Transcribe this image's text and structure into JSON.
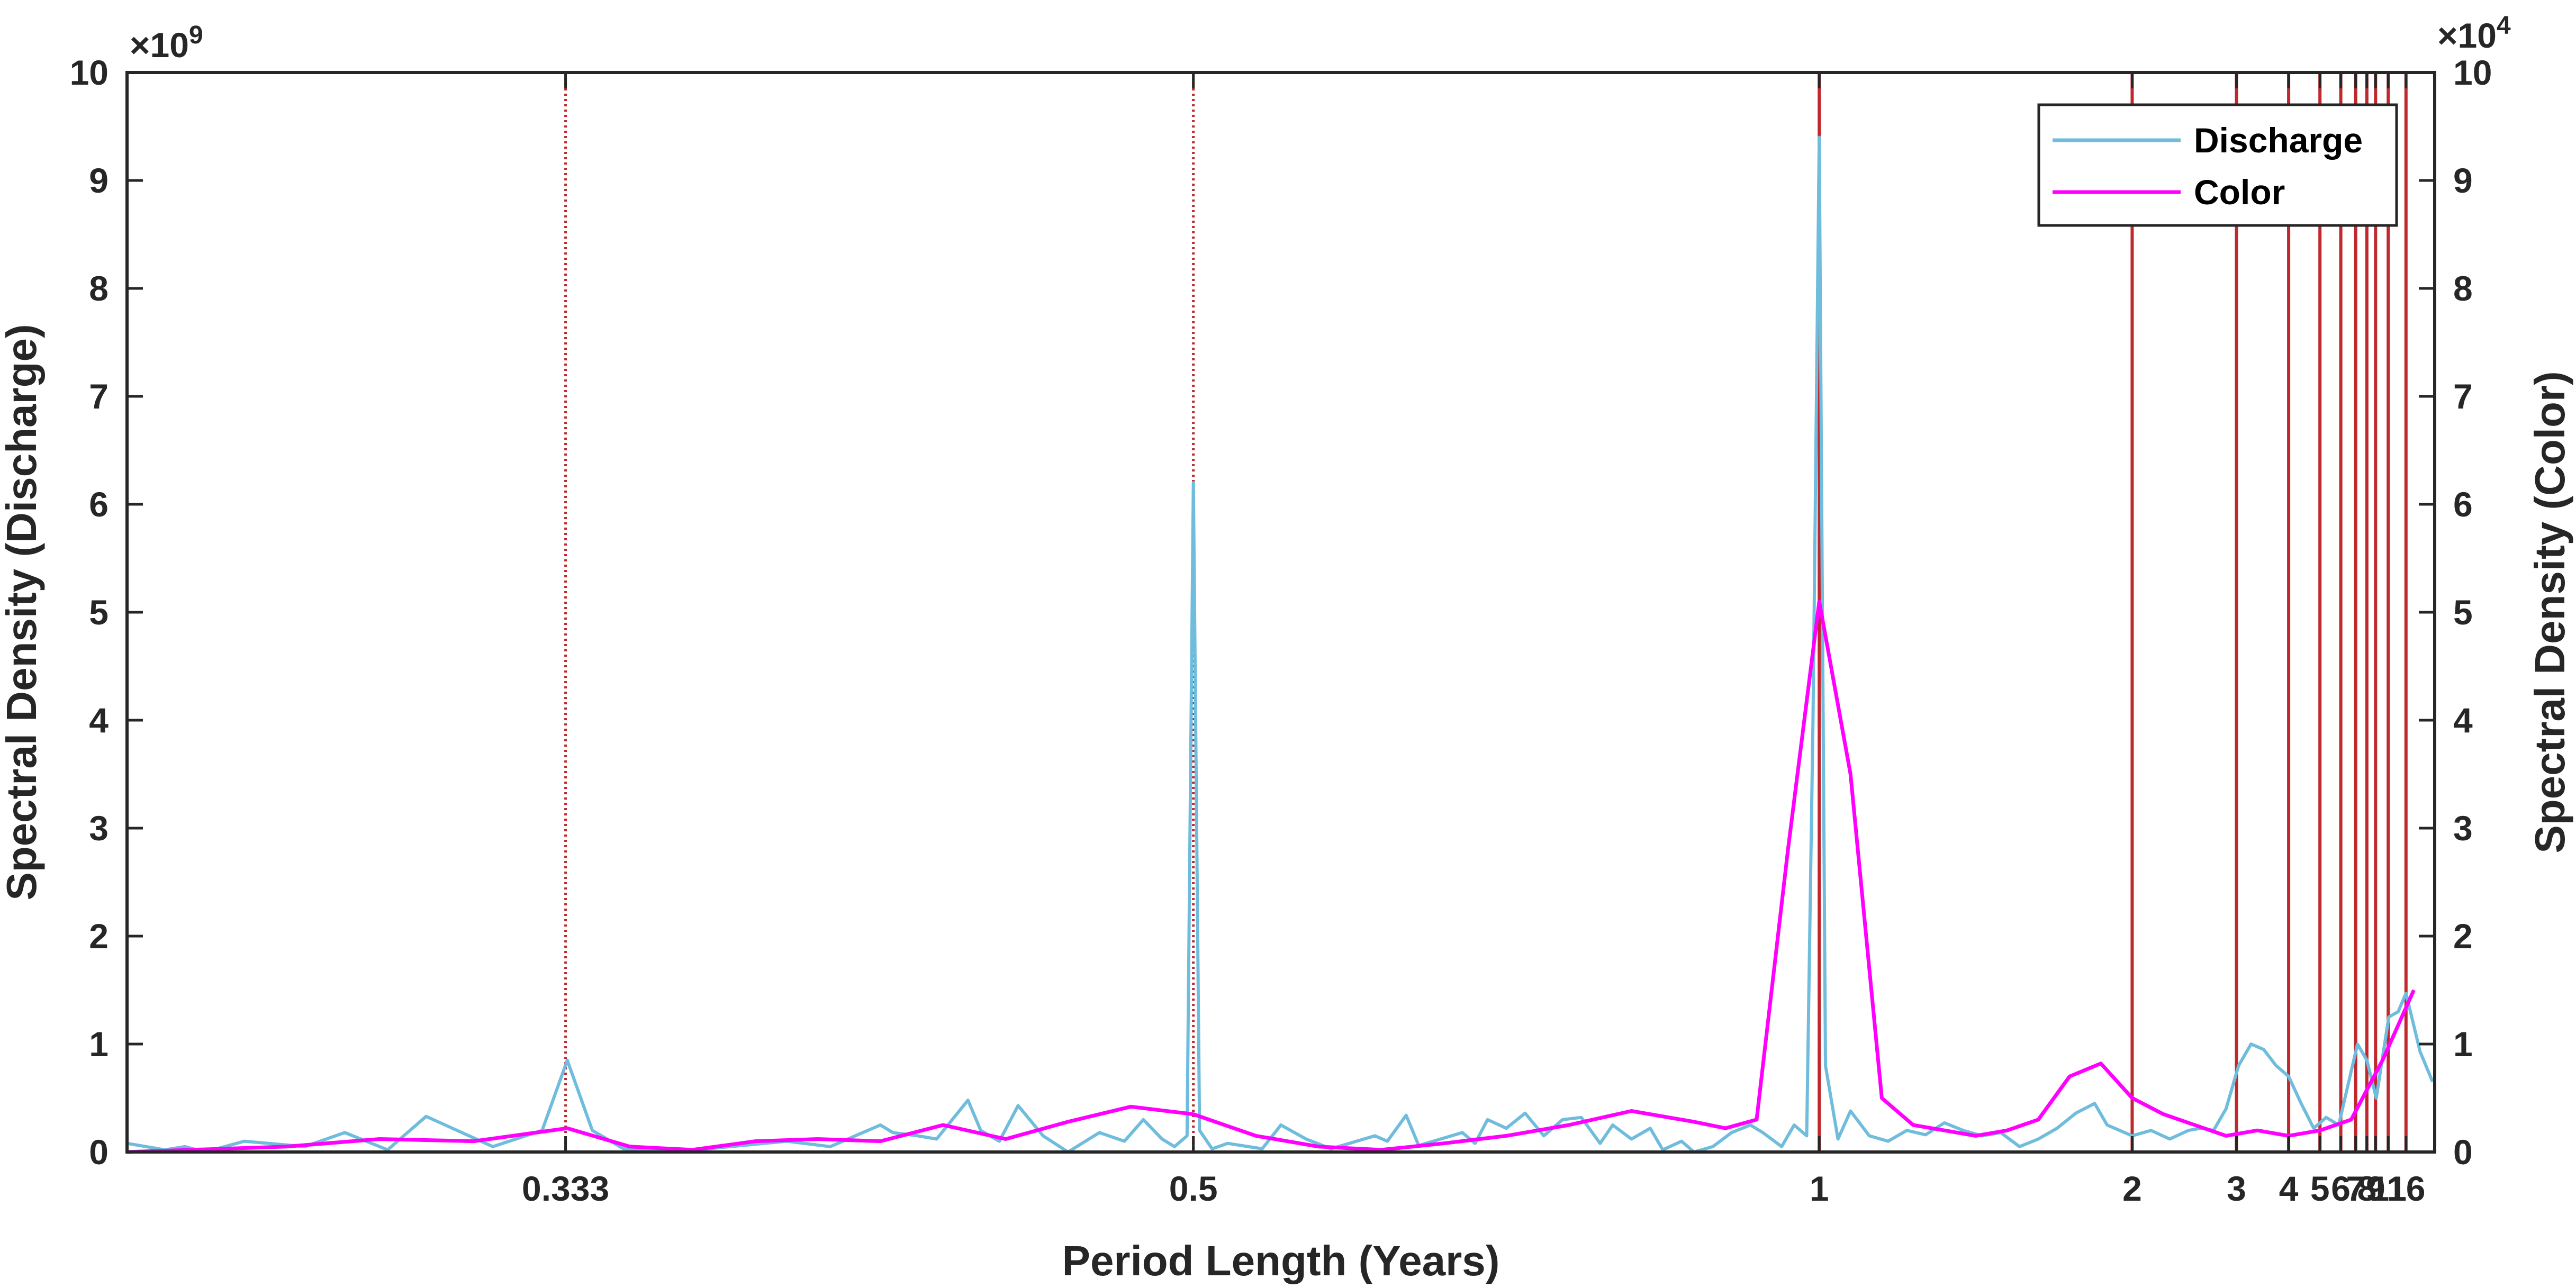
{
  "chart_data": {
    "type": "line",
    "xlabel": "Period Length (Years)",
    "ylabel_left": "Spectral Density (Discharge)",
    "ylabel_right": "Spectral Density (Color)",
    "left_exponent": {
      "base": "×10",
      "power": "9"
    },
    "right_exponent": {
      "base": "×10",
      "power": "4"
    },
    "x_scale": "reciprocal (frequency-linear)",
    "xlim_years": [
      0.27,
      60
    ],
    "ylim_left": [
      0,
      10
    ],
    "ylim_right": [
      0,
      10
    ],
    "yticks_left": [
      "0",
      "1",
      "2",
      "3",
      "4",
      "5",
      "6",
      "7",
      "8",
      "9",
      "10"
    ],
    "yticks_right": [
      "0",
      "1",
      "2",
      "3",
      "4",
      "5",
      "6",
      "7",
      "8",
      "9",
      "10"
    ],
    "xticks": [
      {
        "label": "0.333",
        "value": 0.333
      },
      {
        "label": "0.5",
        "value": 0.5
      },
      {
        "label": "1",
        "value": 1
      },
      {
        "label": "2",
        "value": 2
      },
      {
        "label": "3",
        "value": 3
      },
      {
        "label": "4",
        "value": 4
      },
      {
        "label": "5",
        "value": 5
      },
      {
        "label": "6",
        "value": 6
      },
      {
        "label": "7",
        "value": 7
      },
      {
        "label": "8",
        "value": 8
      },
      {
        "label": "9",
        "value": 9
      },
      {
        "label": "11",
        "value": 11
      },
      {
        "label": "16",
        "value": 16
      }
    ],
    "reference_lines": {
      "dotted": [
        0.333,
        0.5
      ],
      "solid": [
        1,
        2,
        3,
        4,
        5,
        6,
        7,
        8,
        9,
        11,
        16
      ],
      "color": "#c0282e"
    },
    "legend": {
      "position": "top-right"
    },
    "series": [
      {
        "name": "Discharge",
        "axis": "left",
        "color": "#6fbcdc",
        "x": [
          0.27,
          0.2745,
          0.2769,
          0.2794,
          0.2844,
          0.2924,
          0.298,
          0.3042,
          0.31,
          0.3206,
          0.3289,
          0.3333,
          0.3378,
          0.3436,
          0.3534,
          0.3774,
          0.3876,
          0.4,
          0.4032,
          0.4098,
          0.4149,
          0.4237,
          0.4274,
          0.4329,
          0.4386,
          0.4464,
          0.4545,
          0.4651,
          0.4739,
          0.4808,
          0.4878,
          0.4926,
          0.4975,
          0.5,
          0.5025,
          0.5076,
          0.5141,
          0.5291,
          0.5376,
          0.5495,
          0.5618,
          0.5848,
          0.5917,
          0.6024,
          0.6098,
          0.6369,
          0.6452,
          0.6536,
          0.6667,
          0.6803,
          0.6944,
          0.7092,
          0.7246,
          0.7407,
          0.7519,
          0.7692,
          0.7874,
          0.8,
          0.8197,
          0.8333,
          0.8547,
          0.8772,
          0.9009,
          0.9174,
          0.9434,
          0.9615,
          0.9804,
          0.9901,
          1.0,
          1.0101,
          1.0309,
          1.0526,
          1.087,
          1.1236,
          1.1628,
          1.2048,
          1.25,
          1.2987,
          1.3514,
          1.4085,
          1.4706,
          1.5385,
          1.6129,
          1.6949,
          1.7857,
          1.8519,
          2.0,
          2.1277,
          2.2727,
          2.439,
          2.5641,
          2.7027,
          2.8571,
          3.0303,
          3.2258,
          3.4483,
          3.7037,
          4.0,
          4.3478,
          4.7619,
          5.2632,
          5.8824,
          6.25,
          7.1429,
          8.0,
          9.0909,
          11.1111,
          13.3333,
          16.0,
          25.0,
          50.0
        ],
        "values": [
          0.08,
          0.02,
          0.05,
          0.0,
          0.1,
          0.05,
          0.18,
          0.02,
          0.33,
          0.05,
          0.2,
          0.85,
          0.2,
          0.03,
          0.0,
          0.1,
          0.05,
          0.25,
          0.18,
          0.15,
          0.12,
          0.48,
          0.2,
          0.1,
          0.43,
          0.15,
          0.0,
          0.18,
          0.1,
          0.3,
          0.12,
          0.05,
          0.15,
          6.2,
          0.2,
          0.03,
          0.08,
          0.03,
          0.25,
          0.12,
          0.03,
          0.15,
          0.1,
          0.34,
          0.06,
          0.18,
          0.08,
          0.3,
          0.22,
          0.36,
          0.15,
          0.3,
          0.32,
          0.08,
          0.25,
          0.12,
          0.22,
          0.02,
          0.1,
          0.0,
          0.05,
          0.18,
          0.25,
          0.18,
          0.05,
          0.25,
          0.15,
          4.0,
          9.4,
          0.8,
          0.12,
          0.38,
          0.15,
          0.1,
          0.2,
          0.16,
          0.27,
          0.2,
          0.15,
          0.18,
          0.05,
          0.12,
          0.22,
          0.36,
          0.45,
          0.25,
          0.15,
          0.2,
          0.12,
          0.2,
          0.22,
          0.2,
          0.4,
          0.8,
          1.0,
          0.95,
          0.8,
          0.7,
          0.45,
          0.22,
          0.32,
          0.25,
          0.5,
          1.0,
          0.85,
          0.5,
          1.25,
          1.3,
          1.47,
          0.93,
          0.65
        ]
      },
      {
        "name": "Color",
        "axis": "right",
        "color": "#ff00ff",
        "x": [
          0.27,
          0.2899,
          0.303,
          0.3175,
          0.3333,
          0.3448,
          0.3571,
          0.3704,
          0.3846,
          0.4,
          0.4167,
          0.4348,
          0.4545,
          0.4762,
          0.5,
          0.5263,
          0.5556,
          0.5882,
          0.625,
          0.6667,
          0.7143,
          0.7692,
          0.8333,
          0.8696,
          0.9091,
          0.9524,
          1.0,
          1.0526,
          1.1111,
          1.1765,
          1.25,
          1.3333,
          1.4286,
          1.5385,
          1.6667,
          1.8182,
          2.0,
          2.2222,
          2.5,
          2.8571,
          3.3333,
          4.0,
          5.0,
          6.6667,
          10.0,
          20.0
        ],
        "values": [
          0.0,
          0.05,
          0.12,
          0.1,
          0.22,
          0.05,
          0.02,
          0.1,
          0.12,
          0.1,
          0.25,
          0.12,
          0.28,
          0.42,
          0.35,
          0.15,
          0.05,
          0.02,
          0.08,
          0.15,
          0.25,
          0.38,
          0.28,
          0.22,
          0.3,
          2.8,
          5.1,
          3.5,
          0.5,
          0.25,
          0.2,
          0.15,
          0.2,
          0.3,
          0.7,
          0.82,
          0.5,
          0.35,
          0.25,
          0.15,
          0.2,
          0.15,
          0.2,
          0.3,
          0.85,
          1.5
        ]
      }
    ]
  }
}
